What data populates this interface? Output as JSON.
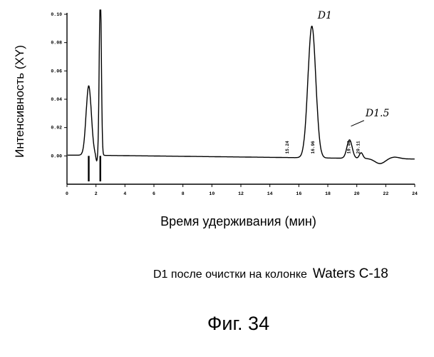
{
  "chart_data": {
    "type": "line",
    "ylabel": "Интенсивность (XY)",
    "xlabel": "Время удерживания (мин)",
    "xlim": [
      0,
      24
    ],
    "ylim": [
      -0.02,
      0.1
    ],
    "x_ticks": [
      0,
      2,
      4,
      6,
      8,
      10,
      12,
      14,
      16,
      18,
      20,
      22,
      24
    ],
    "y_ticks": [
      0.0,
      0.02,
      0.04,
      0.06,
      0.08,
      0.1
    ],
    "y_tick_labels": [
      "0.00",
      "0.02",
      "0.04",
      "0.06",
      "0.08",
      "0.10"
    ],
    "peaks": [
      {
        "x": 1.5,
        "height": 0.049
      },
      {
        "x": 2.3,
        "height": 0.12
      },
      {
        "x": 16.9,
        "height": 0.093
      },
      {
        "x": 19.5,
        "height": 0.013
      },
      {
        "x": 20.3,
        "height": 0.004
      }
    ],
    "annotations": [
      {
        "text": "D1",
        "x": 17.3,
        "y": 0.097
      },
      {
        "text": "D1.5",
        "x": 20.6,
        "y": 0.028
      }
    ],
    "retention_marks": [
      {
        "text": "15.24",
        "x": 15.2
      },
      {
        "text": "16.96",
        "x": 16.96
      },
      {
        "text": "19.44",
        "x": 19.44
      },
      {
        "text": "20.11",
        "x": 20.1
      }
    ]
  },
  "caption": {
    "text": "D1 после очистки на колонке",
    "column": "Waters C-18"
  },
  "figure_label": "Фиг. 34"
}
